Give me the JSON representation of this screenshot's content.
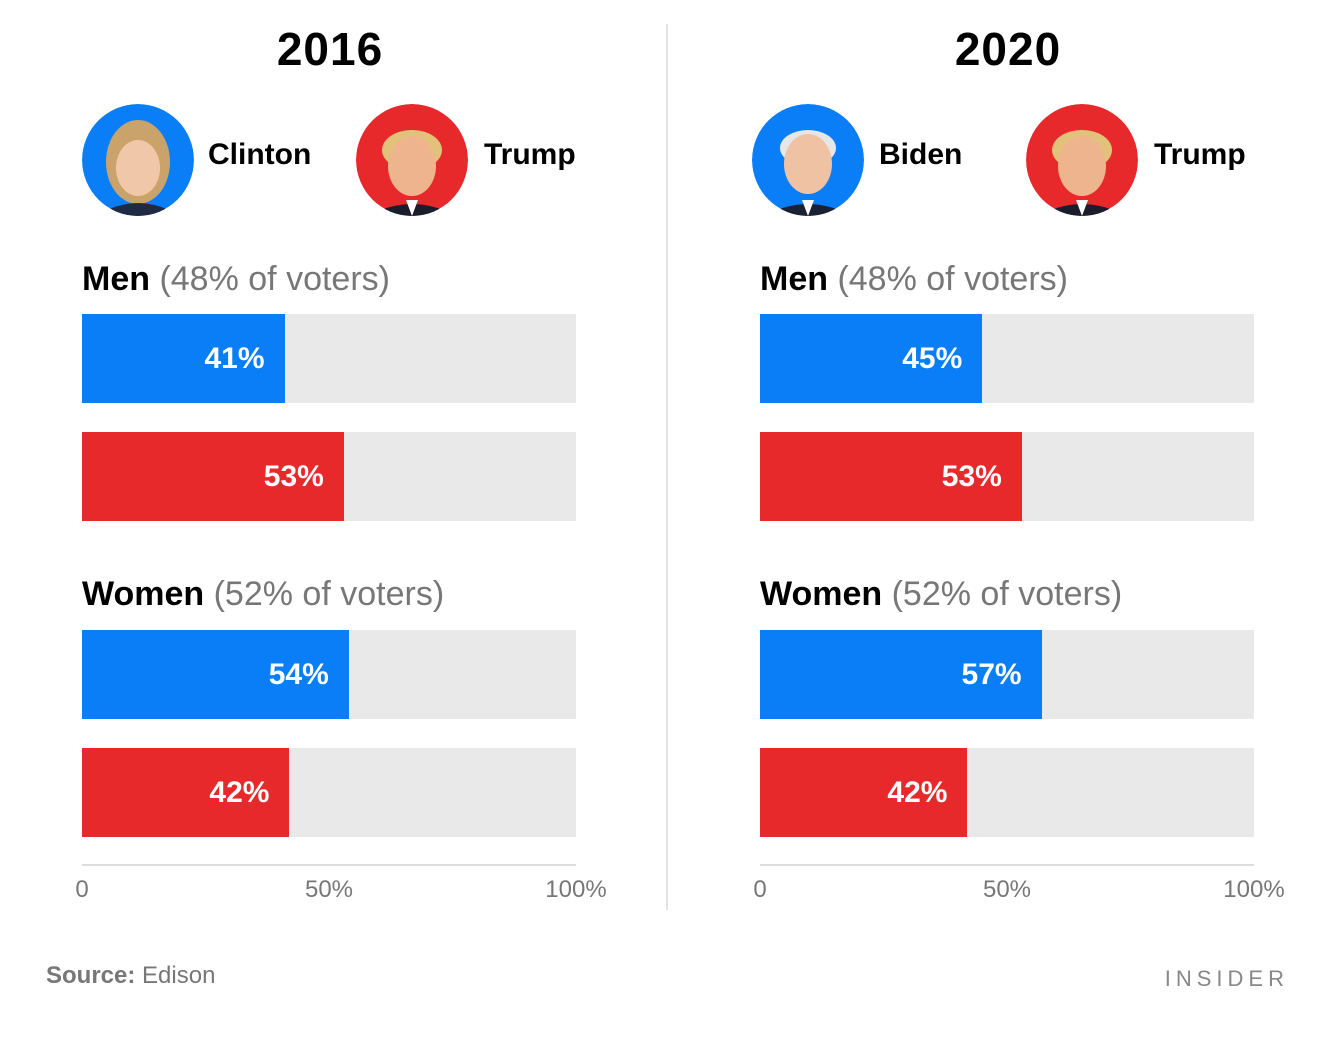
{
  "colors": {
    "dem": "#0a7ef7",
    "rep": "#e8292b",
    "track": "#e9e9e9"
  },
  "source": {
    "label": "Source:",
    "value": "Edison"
  },
  "brand": "INSIDER",
  "chart_data": [
    {
      "type": "bar",
      "title": "2016",
      "candidates": [
        {
          "name": "Clinton",
          "party": "dem",
          "icon": "clinton-portrait-icon"
        },
        {
          "name": "Trump",
          "party": "rep",
          "icon": "trump-portrait-icon"
        }
      ],
      "groups": [
        {
          "label": "Men",
          "sub": "(48% of voters)",
          "values": [
            41,
            53
          ],
          "labels": [
            "41%",
            "53%"
          ]
        },
        {
          "label": "Women",
          "sub": "(52% of voters)",
          "values": [
            54,
            42
          ],
          "labels": [
            "54%",
            "42%"
          ]
        }
      ],
      "xlim": [
        0,
        100
      ],
      "ticks": [
        "0",
        "50%",
        "100%"
      ]
    },
    {
      "type": "bar",
      "title": "2020",
      "candidates": [
        {
          "name": "Biden",
          "party": "dem",
          "icon": "biden-portrait-icon"
        },
        {
          "name": "Trump",
          "party": "rep",
          "icon": "trump-portrait-icon"
        }
      ],
      "groups": [
        {
          "label": "Men",
          "sub": "(48% of voters)",
          "values": [
            45,
            53
          ],
          "labels": [
            "45%",
            "53%"
          ]
        },
        {
          "label": "Women",
          "sub": "(52% of voters)",
          "values": [
            57,
            42
          ],
          "labels": [
            "57%",
            "42%"
          ]
        }
      ],
      "xlim": [
        0,
        100
      ],
      "ticks": [
        "0",
        "50%",
        "100%"
      ]
    }
  ]
}
